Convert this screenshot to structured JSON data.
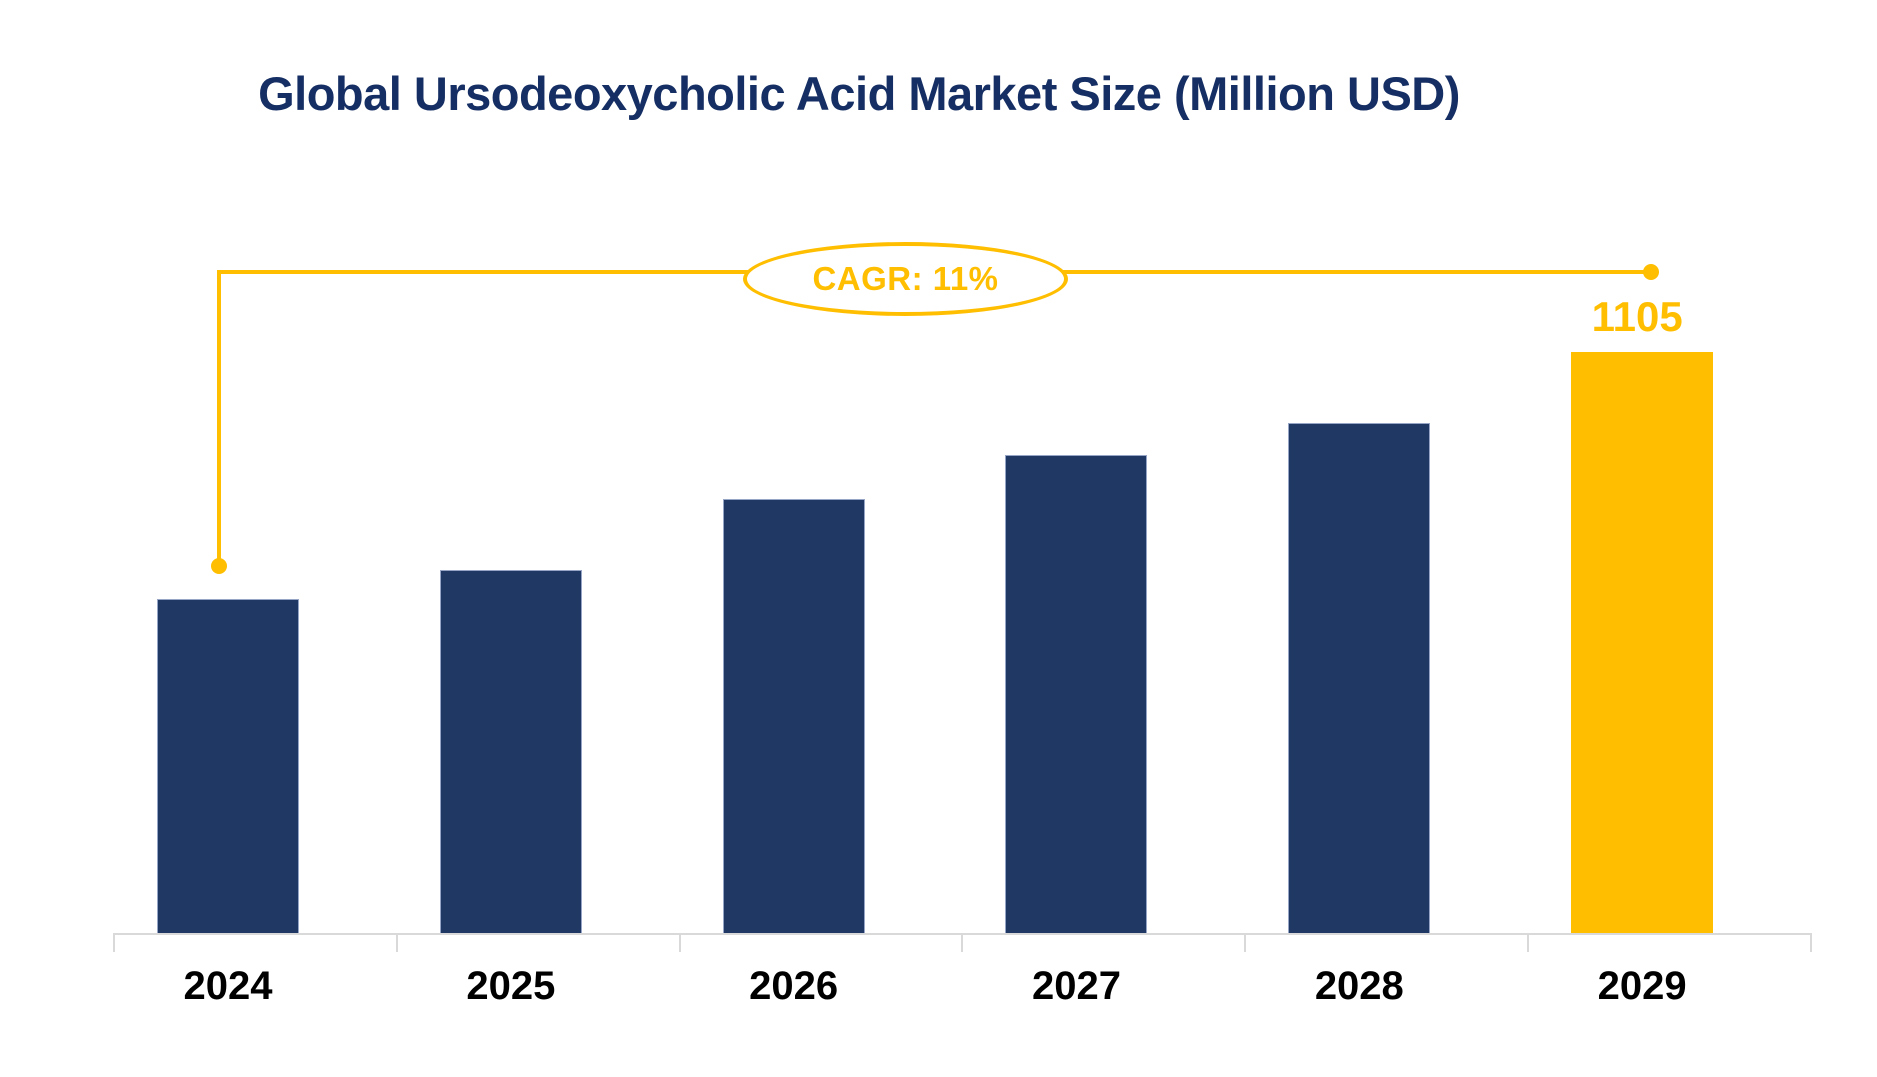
{
  "chart_data": {
    "type": "bar",
    "title": "Global Ursodeoxycholic Acid Market Size (Million USD)",
    "categories": [
      "2024",
      "2025",
      "2026",
      "2027",
      "2028",
      "2029"
    ],
    "values": [
      635,
      690,
      825,
      910,
      970,
      1105
    ],
    "value_labels": [
      "",
      "",
      "",
      "",
      "",
      "1105"
    ],
    "series_name": "Market Size (Million USD)",
    "ylim": [
      0,
      1105
    ],
    "grid": "off",
    "legend": "none",
    "highlight_category": "2029",
    "annotation": {
      "text": "CAGR: 11%",
      "shape": "ellipse-callout",
      "from_category": "2024",
      "to_category": "2029"
    },
    "bar_colors": [
      "#203864",
      "#203864",
      "#203864",
      "#203864",
      "#203864",
      "#FFBE00"
    ]
  },
  "colors": {
    "navy": "#203864",
    "gold": "#FFBE00",
    "title": "#152E63",
    "axis": "#D9D9D9",
    "label": "#000000",
    "background": "#FFFFFF"
  }
}
